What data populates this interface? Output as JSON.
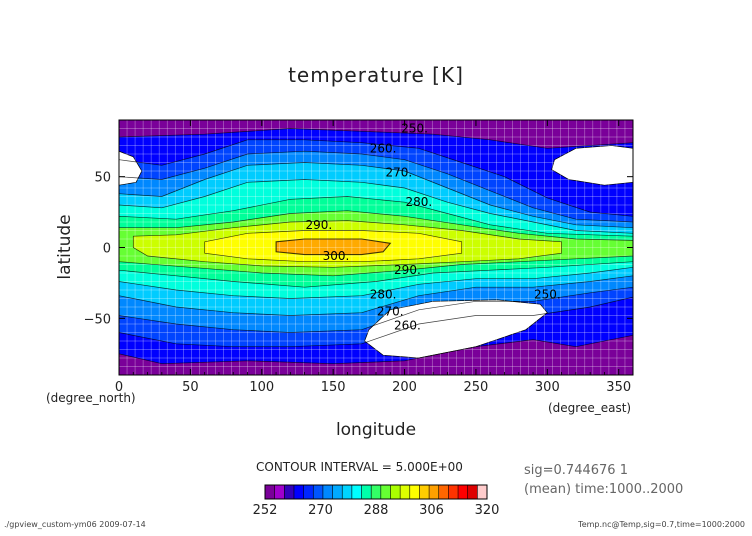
{
  "chart_data": {
    "type": "contour",
    "title": "temperature [K]",
    "xlabel": "longitude",
    "ylabel": "latitude",
    "x_units": "(degree_east)",
    "y_units": "(degree_north)",
    "xlim": [
      0,
      360
    ],
    "ylim": [
      -90,
      90
    ],
    "x_ticks": [
      0,
      50,
      100,
      150,
      200,
      250,
      300,
      350
    ],
    "y_ticks": [
      -50,
      0,
      50
    ],
    "grid": true,
    "contour_interval_text": "CONTOUR INTERVAL = 5.000E+00",
    "contour_labels": [
      {
        "text": "250.",
        "lon": 207,
        "lat": 84
      },
      {
        "text": "260.",
        "lon": 185,
        "lat": 70
      },
      {
        "text": "270.",
        "lon": 196,
        "lat": 53
      },
      {
        "text": "280.",
        "lon": 210,
        "lat": 32
      },
      {
        "text": "290.",
        "lon": 140,
        "lat": 16
      },
      {
        "text": "300.",
        "lon": 152,
        "lat": -6
      },
      {
        "text": "290.",
        "lon": 202,
        "lat": -16
      },
      {
        "text": "280.",
        "lon": 185,
        "lat": -33
      },
      {
        "text": "270.",
        "lon": 190,
        "lat": -45
      },
      {
        "text": "250.",
        "lon": 300,
        "lat": -33
      },
      {
        "text": "260.",
        "lon": 202,
        "lat": -55
      }
    ],
    "colorbar": {
      "tick_labels": [
        "252",
        "270",
        "288",
        "306",
        "320"
      ],
      "colors": [
        "#7a0099",
        "#a000cc",
        "#3300bb",
        "#0000ff",
        "#0026ff",
        "#0055ff",
        "#0088ff",
        "#00aaff",
        "#00d4ff",
        "#00ffff",
        "#00ffaa",
        "#33ff66",
        "#66ff33",
        "#aaff00",
        "#ddff00",
        "#ffff00",
        "#ffcc00",
        "#ffa000",
        "#ff6600",
        "#ff3300",
        "#ff0000",
        "#dd0000",
        "#ffcccc"
      ]
    },
    "palette": {
      "250": "#7a0099",
      "255": "#0000ff",
      "260": "#0044ff",
      "265": "#0088ff",
      "270": "#00ccff",
      "275": "#00ffdd",
      "280": "#00ff99",
      "285": "#66ff33",
      "290": "#ccff00",
      "295": "#ffff00",
      "300": "#ffaa00"
    }
  },
  "annotations": {
    "sig_line1": "sig=0.744676 1",
    "sig_line2": "(mean) time:1000..2000",
    "footer_left": "./gpview_custom-ym06  2009-07-14",
    "footer_right": "Temp.nc@Temp,sig=0.7,time=1000:2000"
  }
}
